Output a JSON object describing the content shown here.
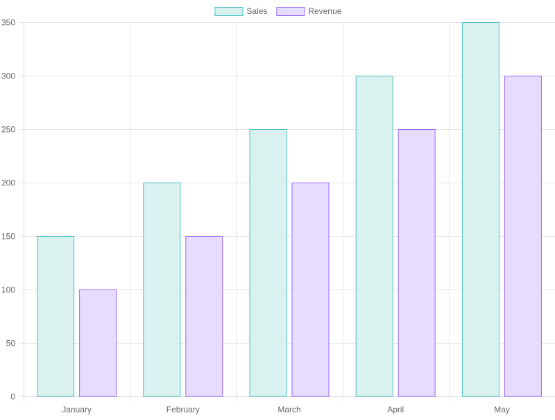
{
  "chart_data": {
    "type": "bar",
    "title": "",
    "xlabel": "",
    "ylabel": "",
    "categories": [
      "January",
      "February",
      "March",
      "April",
      "May"
    ],
    "series": [
      {
        "name": "Sales",
        "values": [
          150,
          200,
          250,
          300,
          350
        ],
        "fill": "#d9f2ef",
        "stroke": "#4bc0c0"
      },
      {
        "name": "Revenue",
        "values": [
          100,
          150,
          200,
          250,
          300
        ],
        "fill": "#e6dcff",
        "stroke": "#9966ff"
      }
    ],
    "ylim": [
      0,
      350
    ],
    "yticks": [
      0,
      50,
      100,
      150,
      200,
      250,
      300,
      350
    ],
    "grid": true,
    "legend_position": "top"
  }
}
